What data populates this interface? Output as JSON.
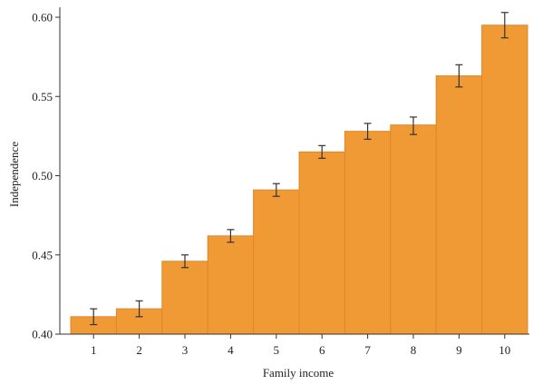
{
  "chart_data": {
    "type": "bar",
    "title": "",
    "xlabel": "Family income",
    "ylabel": "Independence",
    "categories": [
      "1",
      "2",
      "3",
      "4",
      "5",
      "6",
      "7",
      "8",
      "9",
      "10"
    ],
    "values": [
      0.411,
      0.416,
      0.446,
      0.462,
      0.491,
      0.515,
      0.528,
      0.532,
      0.563,
      0.595
    ],
    "error_low": [
      0.406,
      0.411,
      0.442,
      0.458,
      0.487,
      0.511,
      0.523,
      0.526,
      0.556,
      0.587
    ],
    "error_high": [
      0.416,
      0.421,
      0.45,
      0.466,
      0.495,
      0.519,
      0.533,
      0.537,
      0.57,
      0.603
    ],
    "ylim": [
      0.4,
      0.6
    ],
    "yticks": [
      "0.40",
      "0.45",
      "0.50",
      "0.55",
      "0.60"
    ],
    "grid": false,
    "bar_color": "#f09a36",
    "bar_edge_color": "#e2852a",
    "error_bar_color": "#333333"
  }
}
